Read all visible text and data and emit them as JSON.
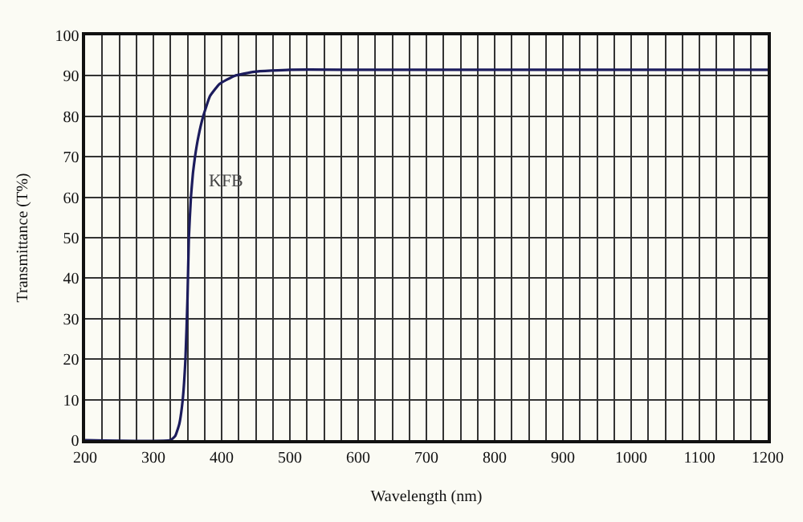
{
  "chart_data": {
    "type": "line",
    "xlabel": "Wavelength (nm)",
    "ylabel": "Transmittance (T%)",
    "series": [
      {
        "name": "KFB",
        "color": "#1c1c5c",
        "x": [
          200,
          325,
          332,
          338,
          343,
          347,
          350,
          352,
          355,
          358,
          361,
          366,
          373,
          383,
          397,
          419,
          448,
          500,
          600,
          800,
          1000,
          1200
        ],
        "values": [
          0,
          0,
          1,
          4,
          10,
          20,
          35,
          50,
          60,
          66,
          70,
          75,
          80,
          85,
          88,
          90,
          91,
          91.5,
          91.5,
          91.5,
          91.5,
          91.5
        ]
      }
    ],
    "xlim": [
      200,
      1200
    ],
    "ylim": [
      0,
      100
    ],
    "xticks": [
      200,
      {
        "value": 225,
        "label": null
      },
      {
        "value": 250,
        "label": null
      },
      {
        "value": 275,
        "label": null
      },
      300,
      {
        "value": 325,
        "label": null
      },
      {
        "value": 350,
        "label": null
      },
      {
        "value": 375,
        "label": null
      },
      400,
      {
        "value": 425,
        "label": null
      },
      {
        "value": 450,
        "label": null
      },
      {
        "value": 475,
        "label": null
      },
      500,
      {
        "value": 525,
        "label": null
      },
      {
        "value": 550,
        "label": null
      },
      {
        "value": 575,
        "label": null
      },
      600,
      {
        "value": 625,
        "label": null
      },
      {
        "value": 650,
        "label": null
      },
      {
        "value": 675,
        "label": null
      },
      700,
      {
        "value": 725,
        "label": null
      },
      {
        "value": 750,
        "label": null
      },
      {
        "value": 775,
        "label": null
      },
      800,
      {
        "value": 825,
        "label": null
      },
      {
        "value": 850,
        "label": null
      },
      {
        "value": 875,
        "label": null
      },
      900,
      {
        "value": 925,
        "label": null
      },
      {
        "value": 950,
        "label": null
      },
      {
        "value": 975,
        "label": null
      },
      1000,
      {
        "value": 1025,
        "label": null
      },
      {
        "value": 1050,
        "label": null
      },
      {
        "value": 1075,
        "label": null
      },
      1100,
      {
        "value": 1125,
        "label": null
      },
      {
        "value": 1150,
        "label": null
      },
      {
        "value": 1175,
        "label": null
      },
      1200
    ],
    "yticks": [
      0,
      10,
      20,
      30,
      40,
      50,
      60,
      70,
      80,
      90,
      100
    ],
    "grid": true,
    "legend": false,
    "marker": "none",
    "line_style": "solid"
  }
}
